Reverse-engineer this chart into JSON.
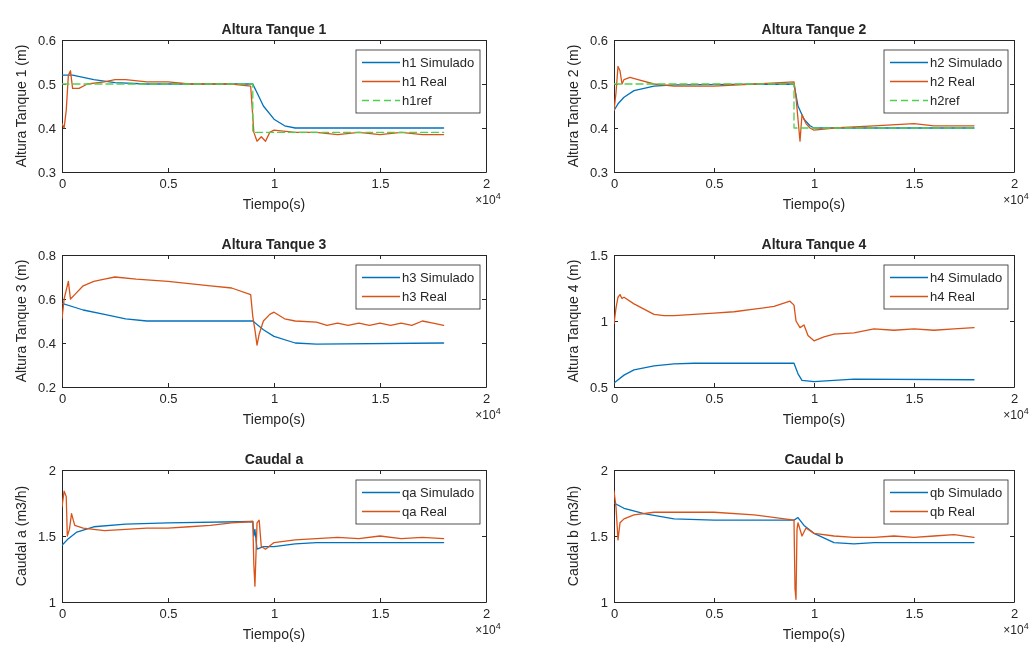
{
  "chart_data": [
    {
      "type": "line",
      "title": "Altura Tanque 1",
      "xlabel": "Tiempo(s)",
      "ylabel": "Altura Tanque 1 (m)",
      "xlim": [
        0,
        2
      ],
      "xticks": [
        0,
        0.5,
        1,
        1.5,
        2
      ],
      "ylim": [
        0.3,
        0.6
      ],
      "yticks": [
        0.3,
        0.4,
        0.5,
        0.6
      ],
      "legend": "top right",
      "marker": "none",
      "annotations": [
        "×10$^{4}$"
      ],
      "series": [
        {
          "name": "h1 Simulado",
          "color": "#0072bd",
          "line_style": "solid",
          "x": [
            0,
            0.05,
            0.15,
            0.25,
            0.4,
            0.9,
            0.92,
            0.95,
            1.0,
            1.05,
            1.1,
            1.2,
            1.8
          ],
          "values": [
            0.52,
            0.52,
            0.51,
            0.503,
            0.5,
            0.5,
            0.48,
            0.45,
            0.42,
            0.405,
            0.4,
            0.4,
            0.4
          ]
        },
        {
          "name": "h1 Real",
          "color": "#d95319",
          "line_style": "solid",
          "x": [
            0,
            0.01,
            0.02,
            0.03,
            0.04,
            0.05,
            0.08,
            0.12,
            0.2,
            0.25,
            0.3,
            0.4,
            0.5,
            0.6,
            0.7,
            0.8,
            0.89,
            0.905,
            0.92,
            0.94,
            0.96,
            0.98,
            1.0,
            1.1,
            1.2,
            1.3,
            1.4,
            1.5,
            1.6,
            1.7,
            1.8
          ],
          "values": [
            0.41,
            0.4,
            0.44,
            0.52,
            0.53,
            0.49,
            0.49,
            0.5,
            0.505,
            0.51,
            0.51,
            0.505,
            0.505,
            0.5,
            0.5,
            0.5,
            0.495,
            0.39,
            0.37,
            0.38,
            0.37,
            0.39,
            0.395,
            0.39,
            0.39,
            0.385,
            0.39,
            0.385,
            0.39,
            0.385,
            0.385
          ]
        },
        {
          "name": "h1ref",
          "color": "#4dd24d",
          "line_style": "dashed",
          "x": [
            0,
            0.9,
            0.9,
            1.8
          ],
          "values": [
            0.5,
            0.5,
            0.39,
            0.39
          ]
        }
      ]
    },
    {
      "type": "line",
      "title": "Altura Tanque 2",
      "xlabel": "Tiempo(s)",
      "ylabel": "Altura Tanque 2 (m)",
      "xlim": [
        0,
        2
      ],
      "xticks": [
        0,
        0.5,
        1,
        1.5,
        2
      ],
      "ylim": [
        0.3,
        0.6
      ],
      "yticks": [
        0.3,
        0.4,
        0.5,
        0.6
      ],
      "legend": "top right",
      "marker": "none",
      "annotations": [
        "×10$^{4}$"
      ],
      "series": [
        {
          "name": "h2 Simulado",
          "color": "#0072bd",
          "line_style": "solid",
          "x": [
            0,
            0.02,
            0.05,
            0.1,
            0.2,
            0.3,
            0.9,
            0.92,
            0.95,
            0.98,
            1.0,
            1.8
          ],
          "values": [
            0.44,
            0.455,
            0.47,
            0.485,
            0.495,
            0.498,
            0.5,
            0.45,
            0.42,
            0.405,
            0.4,
            0.4
          ]
        },
        {
          "name": "h2 Real",
          "color": "#d95319",
          "line_style": "solid",
          "x": [
            0,
            0.01,
            0.02,
            0.03,
            0.04,
            0.05,
            0.08,
            0.12,
            0.2,
            0.3,
            0.5,
            0.7,
            0.9,
            0.91,
            0.92,
            0.93,
            0.94,
            0.96,
            0.98,
            1.0,
            1.1,
            1.3,
            1.5,
            1.6,
            1.8
          ],
          "values": [
            0.44,
            0.48,
            0.54,
            0.53,
            0.5,
            0.51,
            0.515,
            0.51,
            0.5,
            0.495,
            0.495,
            0.5,
            0.505,
            0.47,
            0.42,
            0.37,
            0.43,
            0.41,
            0.4,
            0.395,
            0.4,
            0.405,
            0.41,
            0.405,
            0.405
          ]
        },
        {
          "name": "h2ref",
          "color": "#4dd24d",
          "line_style": "dashed",
          "x": [
            0,
            0.9,
            0.9,
            1.8
          ],
          "values": [
            0.5,
            0.5,
            0.4,
            0.4
          ]
        }
      ]
    },
    {
      "type": "line",
      "title": "Altura Tanque 3",
      "xlabel": "Tiempo(s)",
      "ylabel": "Altura Tanque 3 (m)",
      "xlim": [
        0,
        2
      ],
      "xticks": [
        0,
        0.5,
        1,
        1.5,
        2
      ],
      "ylim": [
        0.2,
        0.8
      ],
      "yticks": [
        0.2,
        0.4,
        0.6,
        0.8
      ],
      "legend": "top right",
      "marker": "none",
      "annotations": [
        "×10$^{4}$"
      ],
      "series": [
        {
          "name": "h3 Simulado",
          "color": "#0072bd",
          "line_style": "solid",
          "x": [
            0,
            0.1,
            0.2,
            0.3,
            0.4,
            0.9,
            0.95,
            1.0,
            1.1,
            1.2,
            1.8
          ],
          "values": [
            0.58,
            0.55,
            0.53,
            0.51,
            0.5,
            0.5,
            0.46,
            0.43,
            0.4,
            0.395,
            0.4
          ]
        },
        {
          "name": "h3 Real",
          "color": "#d95319",
          "line_style": "solid",
          "x": [
            0,
            0.01,
            0.02,
            0.03,
            0.04,
            0.06,
            0.1,
            0.15,
            0.2,
            0.25,
            0.35,
            0.5,
            0.6,
            0.7,
            0.8,
            0.89,
            0.9,
            0.91,
            0.92,
            0.93,
            0.95,
            0.98,
            1.0,
            1.05,
            1.1,
            1.2,
            1.25,
            1.3,
            1.35,
            1.4,
            1.45,
            1.5,
            1.55,
            1.6,
            1.65,
            1.7,
            1.75,
            1.8
          ],
          "values": [
            0.51,
            0.6,
            0.64,
            0.68,
            0.6,
            0.62,
            0.66,
            0.68,
            0.69,
            0.7,
            0.69,
            0.68,
            0.67,
            0.66,
            0.65,
            0.62,
            0.52,
            0.46,
            0.39,
            0.44,
            0.5,
            0.53,
            0.54,
            0.51,
            0.5,
            0.495,
            0.48,
            0.49,
            0.48,
            0.49,
            0.48,
            0.49,
            0.48,
            0.49,
            0.48,
            0.5,
            0.49,
            0.48
          ]
        }
      ]
    },
    {
      "type": "line",
      "title": "Altura Tanque 4",
      "xlabel": "Tiempo(s)",
      "ylabel": "Altura Tanque 4 (m)",
      "xlim": [
        0,
        2
      ],
      "xticks": [
        0,
        0.5,
        1,
        1.5,
        2
      ],
      "ylim": [
        0.5,
        1.5
      ],
      "yticks": [
        0.5,
        1,
        1.5
      ],
      "legend": "top right",
      "marker": "none",
      "annotations": [
        "×10$^{4}$"
      ],
      "series": [
        {
          "name": "h4 Simulado",
          "color": "#0072bd",
          "line_style": "solid",
          "x": [
            0,
            0.05,
            0.1,
            0.2,
            0.3,
            0.4,
            0.9,
            0.92,
            0.94,
            1.0,
            1.1,
            1.2,
            1.8
          ],
          "values": [
            0.53,
            0.59,
            0.63,
            0.66,
            0.675,
            0.68,
            0.68,
            0.6,
            0.55,
            0.54,
            0.55,
            0.56,
            0.555
          ]
        },
        {
          "name": "h4 Real",
          "color": "#d95319",
          "line_style": "solid",
          "x": [
            0,
            0.01,
            0.02,
            0.03,
            0.04,
            0.05,
            0.1,
            0.15,
            0.2,
            0.25,
            0.3,
            0.4,
            0.5,
            0.6,
            0.7,
            0.8,
            0.88,
            0.9,
            0.91,
            0.93,
            0.95,
            0.97,
            1.0,
            1.05,
            1.1,
            1.2,
            1.3,
            1.4,
            1.5,
            1.6,
            1.7,
            1.8
          ],
          "values": [
            0.98,
            1.1,
            1.18,
            1.2,
            1.17,
            1.18,
            1.13,
            1.09,
            1.05,
            1.04,
            1.04,
            1.05,
            1.06,
            1.07,
            1.09,
            1.11,
            1.15,
            1.12,
            1.0,
            0.95,
            0.97,
            0.89,
            0.85,
            0.88,
            0.9,
            0.91,
            0.94,
            0.93,
            0.94,
            0.93,
            0.94,
            0.95
          ]
        }
      ]
    },
    {
      "type": "line",
      "title": "Caudal a",
      "xlabel": "Tiempo(s)",
      "ylabel": "Caudal a (m3/h)",
      "xlim": [
        0,
        2
      ],
      "xticks": [
        0,
        0.5,
        1,
        1.5,
        2
      ],
      "ylim": [
        1,
        2
      ],
      "yticks": [
        1,
        1.5,
        2
      ],
      "legend": "top right",
      "marker": "none",
      "annotations": [
        "×10$^{4}$"
      ],
      "series": [
        {
          "name": "qa Simulado",
          "color": "#0072bd",
          "line_style": "solid",
          "x": [
            0,
            0.03,
            0.07,
            0.15,
            0.3,
            0.5,
            0.9,
            0.905,
            0.91,
            0.92,
            0.95,
            1.0,
            1.1,
            1.2,
            1.8
          ],
          "values": [
            1.43,
            1.48,
            1.53,
            1.57,
            1.59,
            1.6,
            1.61,
            1.5,
            1.55,
            1.4,
            1.42,
            1.42,
            1.44,
            1.45,
            1.45
          ]
        },
        {
          "name": "qa Real",
          "color": "#d95319",
          "line_style": "solid",
          "x": [
            0,
            0.01,
            0.02,
            0.025,
            0.035,
            0.045,
            0.06,
            0.1,
            0.2,
            0.3,
            0.4,
            0.5,
            0.6,
            0.7,
            0.8,
            0.9,
            0.905,
            0.91,
            0.92,
            0.93,
            0.94,
            0.96,
            1.0,
            1.1,
            1.2,
            1.3,
            1.4,
            1.5,
            1.6,
            1.7,
            1.8
          ],
          "values": [
            1.72,
            1.84,
            1.8,
            1.5,
            1.55,
            1.67,
            1.58,
            1.56,
            1.54,
            1.55,
            1.56,
            1.56,
            1.57,
            1.58,
            1.6,
            1.61,
            1.28,
            1.12,
            1.6,
            1.62,
            1.42,
            1.4,
            1.45,
            1.47,
            1.48,
            1.49,
            1.48,
            1.5,
            1.48,
            1.49,
            1.48
          ]
        }
      ]
    },
    {
      "type": "line",
      "title": "Caudal b",
      "xlabel": "Tiempo(s)",
      "ylabel": "Caudal b (m3/h)",
      "xlim": [
        0,
        2
      ],
      "xticks": [
        0,
        0.5,
        1,
        1.5,
        2
      ],
      "ylim": [
        1,
        2
      ],
      "yticks": [
        1,
        1.5,
        2
      ],
      "legend": "top right",
      "marker": "none",
      "annotations": [
        "×10$^{4}$"
      ],
      "series": [
        {
          "name": "qb Simulado",
          "color": "#0072bd",
          "line_style": "solid",
          "x": [
            0,
            0.05,
            0.15,
            0.3,
            0.5,
            0.9,
            0.92,
            0.95,
            1.0,
            1.1,
            1.2,
            1.3,
            1.8
          ],
          "values": [
            1.75,
            1.71,
            1.67,
            1.63,
            1.62,
            1.62,
            1.64,
            1.58,
            1.52,
            1.45,
            1.44,
            1.45,
            1.45
          ]
        },
        {
          "name": "qb Real",
          "color": "#d95319",
          "line_style": "solid",
          "x": [
            0,
            0.01,
            0.02,
            0.03,
            0.05,
            0.1,
            0.2,
            0.3,
            0.5,
            0.7,
            0.9,
            0.905,
            0.91,
            0.915,
            0.92,
            0.94,
            0.96,
            1.0,
            1.1,
            1.2,
            1.3,
            1.4,
            1.5,
            1.6,
            1.7,
            1.8
          ],
          "values": [
            1.84,
            1.72,
            1.47,
            1.6,
            1.63,
            1.66,
            1.68,
            1.68,
            1.68,
            1.66,
            1.62,
            1.1,
            1.02,
            1.55,
            1.6,
            1.5,
            1.56,
            1.52,
            1.5,
            1.49,
            1.49,
            1.5,
            1.49,
            1.5,
            1.51,
            1.49
          ]
        }
      ]
    }
  ]
}
